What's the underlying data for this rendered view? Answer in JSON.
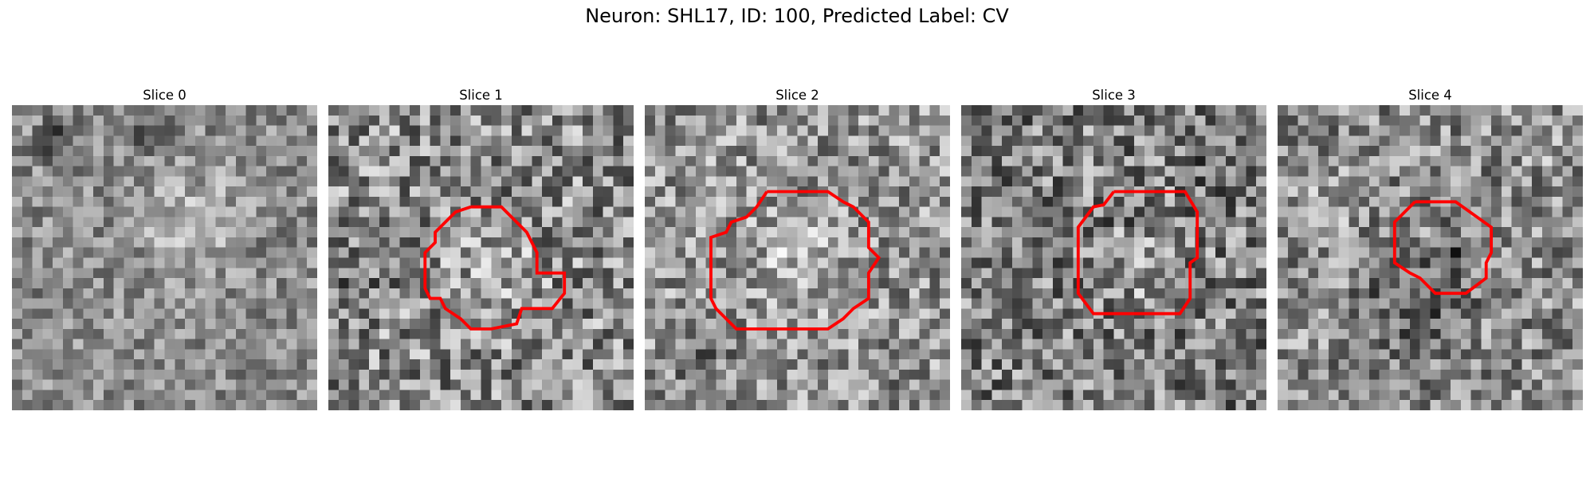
{
  "figure": {
    "title": "Neuron: SHL17, ID: 100, Predicted Label: CV",
    "contour_color": "#ff0000"
  },
  "slices": [
    {
      "label": "Slice 0",
      "has_contour": false
    },
    {
      "label": "Slice 1",
      "has_contour": true
    },
    {
      "label": "Slice 2",
      "has_contour": true
    },
    {
      "label": "Slice 3",
      "has_contour": true
    },
    {
      "label": "Slice 4",
      "has_contour": true
    }
  ]
}
